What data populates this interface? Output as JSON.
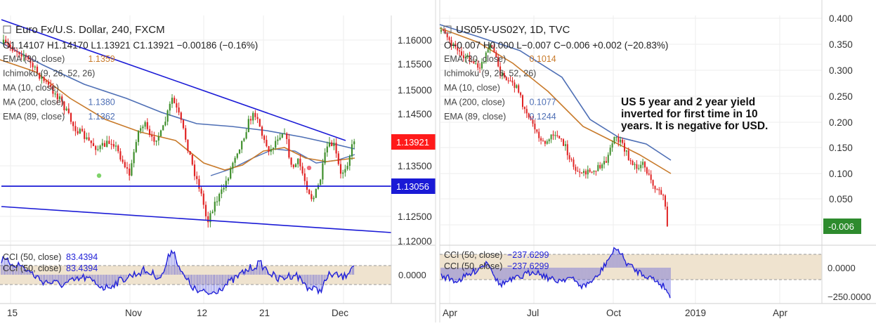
{
  "colors": {
    "background": "#ffffff",
    "grid": "#ededed",
    "candle_up": "#3f8f2c",
    "candle_down": "#e02424",
    "sma_200": "#4e6fb5",
    "ema_89": "#c87a2a",
    "trendline": "#1a1ad6",
    "cci": "#2323d8",
    "cci_band": "#efe3cf",
    "axis_text": "#333333",
    "price_tag_red": "#ff1a1a",
    "price_tag_blue": "#1a1ad6",
    "price_tag_green": "#2e8b2e"
  },
  "left": {
    "legend": {
      "symbol": "Euro Fx/U.S. Dollar, 240, FXCM",
      "ohlc": "O1.14107 H1.14170 L1.13921 C1.13921 −0.00186 (−0.16%)",
      "rows": [
        {
          "label": "EMA (30, close)",
          "value": "1.1359",
          "color": "#c87a2a"
        },
        {
          "label": "Ichimoku (9, 26, 52, 26)",
          "value": "",
          "color": "#888888"
        },
        {
          "label": "MA (10, close)",
          "value": "",
          "color": "#888888"
        },
        {
          "label": "MA (200, close)",
          "value": "1.1380",
          "color": "#4e6fb5"
        },
        {
          "label": "EMA (89, close)",
          "value": "1.1362",
          "color": "#4e6fb5"
        }
      ]
    },
    "price_axis": [
      "1.16000",
      "1.15500",
      "1.15000",
      "1.14500",
      "1.13500",
      "1.12500",
      "1.12000"
    ],
    "price_tags": [
      {
        "text": "1.13921",
        "kind": "red"
      },
      {
        "text": "1.13056",
        "kind": "blue"
      }
    ],
    "time_axis": [
      "15",
      "Nov",
      "12",
      "21",
      "Dec"
    ],
    "cci": {
      "legend": [
        {
          "label": "CCI (50, close)",
          "value": "83.4394"
        },
        {
          "label": "CCI (50, close)",
          "value": "83.4394"
        }
      ],
      "axis": [
        "0.0000"
      ]
    }
  },
  "right": {
    "legend": {
      "symbol": "US05Y-US02Y, 1D, TVC",
      "ohlc": "O−0.007 H0.000 L−0.007 C−0.006 +0.002 (−20.83%)",
      "rows": [
        {
          "label": "EMA (30, close)",
          "value": "0.1014",
          "color": "#c87a2a"
        },
        {
          "label": "Ichimoku (9, 26, 52, 26)",
          "value": "",
          "color": "#888888"
        },
        {
          "label": "MA (10, close)",
          "value": "",
          "color": "#888888"
        },
        {
          "label": "MA (200, close)",
          "value": "0.1077",
          "color": "#4e6fb5"
        },
        {
          "label": "EMA (89, close)",
          "value": "0.1244",
          "color": "#4e6fb5"
        }
      ]
    },
    "annotation": [
      "US 5 year and 2 year yield",
      "inverted for first time in 10",
      "years. It is negative for USD."
    ],
    "price_axis": [
      "0.400",
      "0.350",
      "0.300",
      "0.250",
      "0.200",
      "0.150",
      "0.100",
      "0.050"
    ],
    "price_tags": [
      {
        "text": "-0.006",
        "kind": "green"
      }
    ],
    "time_axis": [
      "Apr",
      "Jul",
      "Oct",
      "2019",
      "Apr"
    ],
    "cci": {
      "legend": [
        {
          "label": "CCI (50, close)",
          "value": "−237.6299"
        },
        {
          "label": "CCI (50, close)",
          "value": "−237.6299"
        }
      ],
      "axis": [
        "0.0000",
        "−250.0000"
      ]
    }
  }
}
